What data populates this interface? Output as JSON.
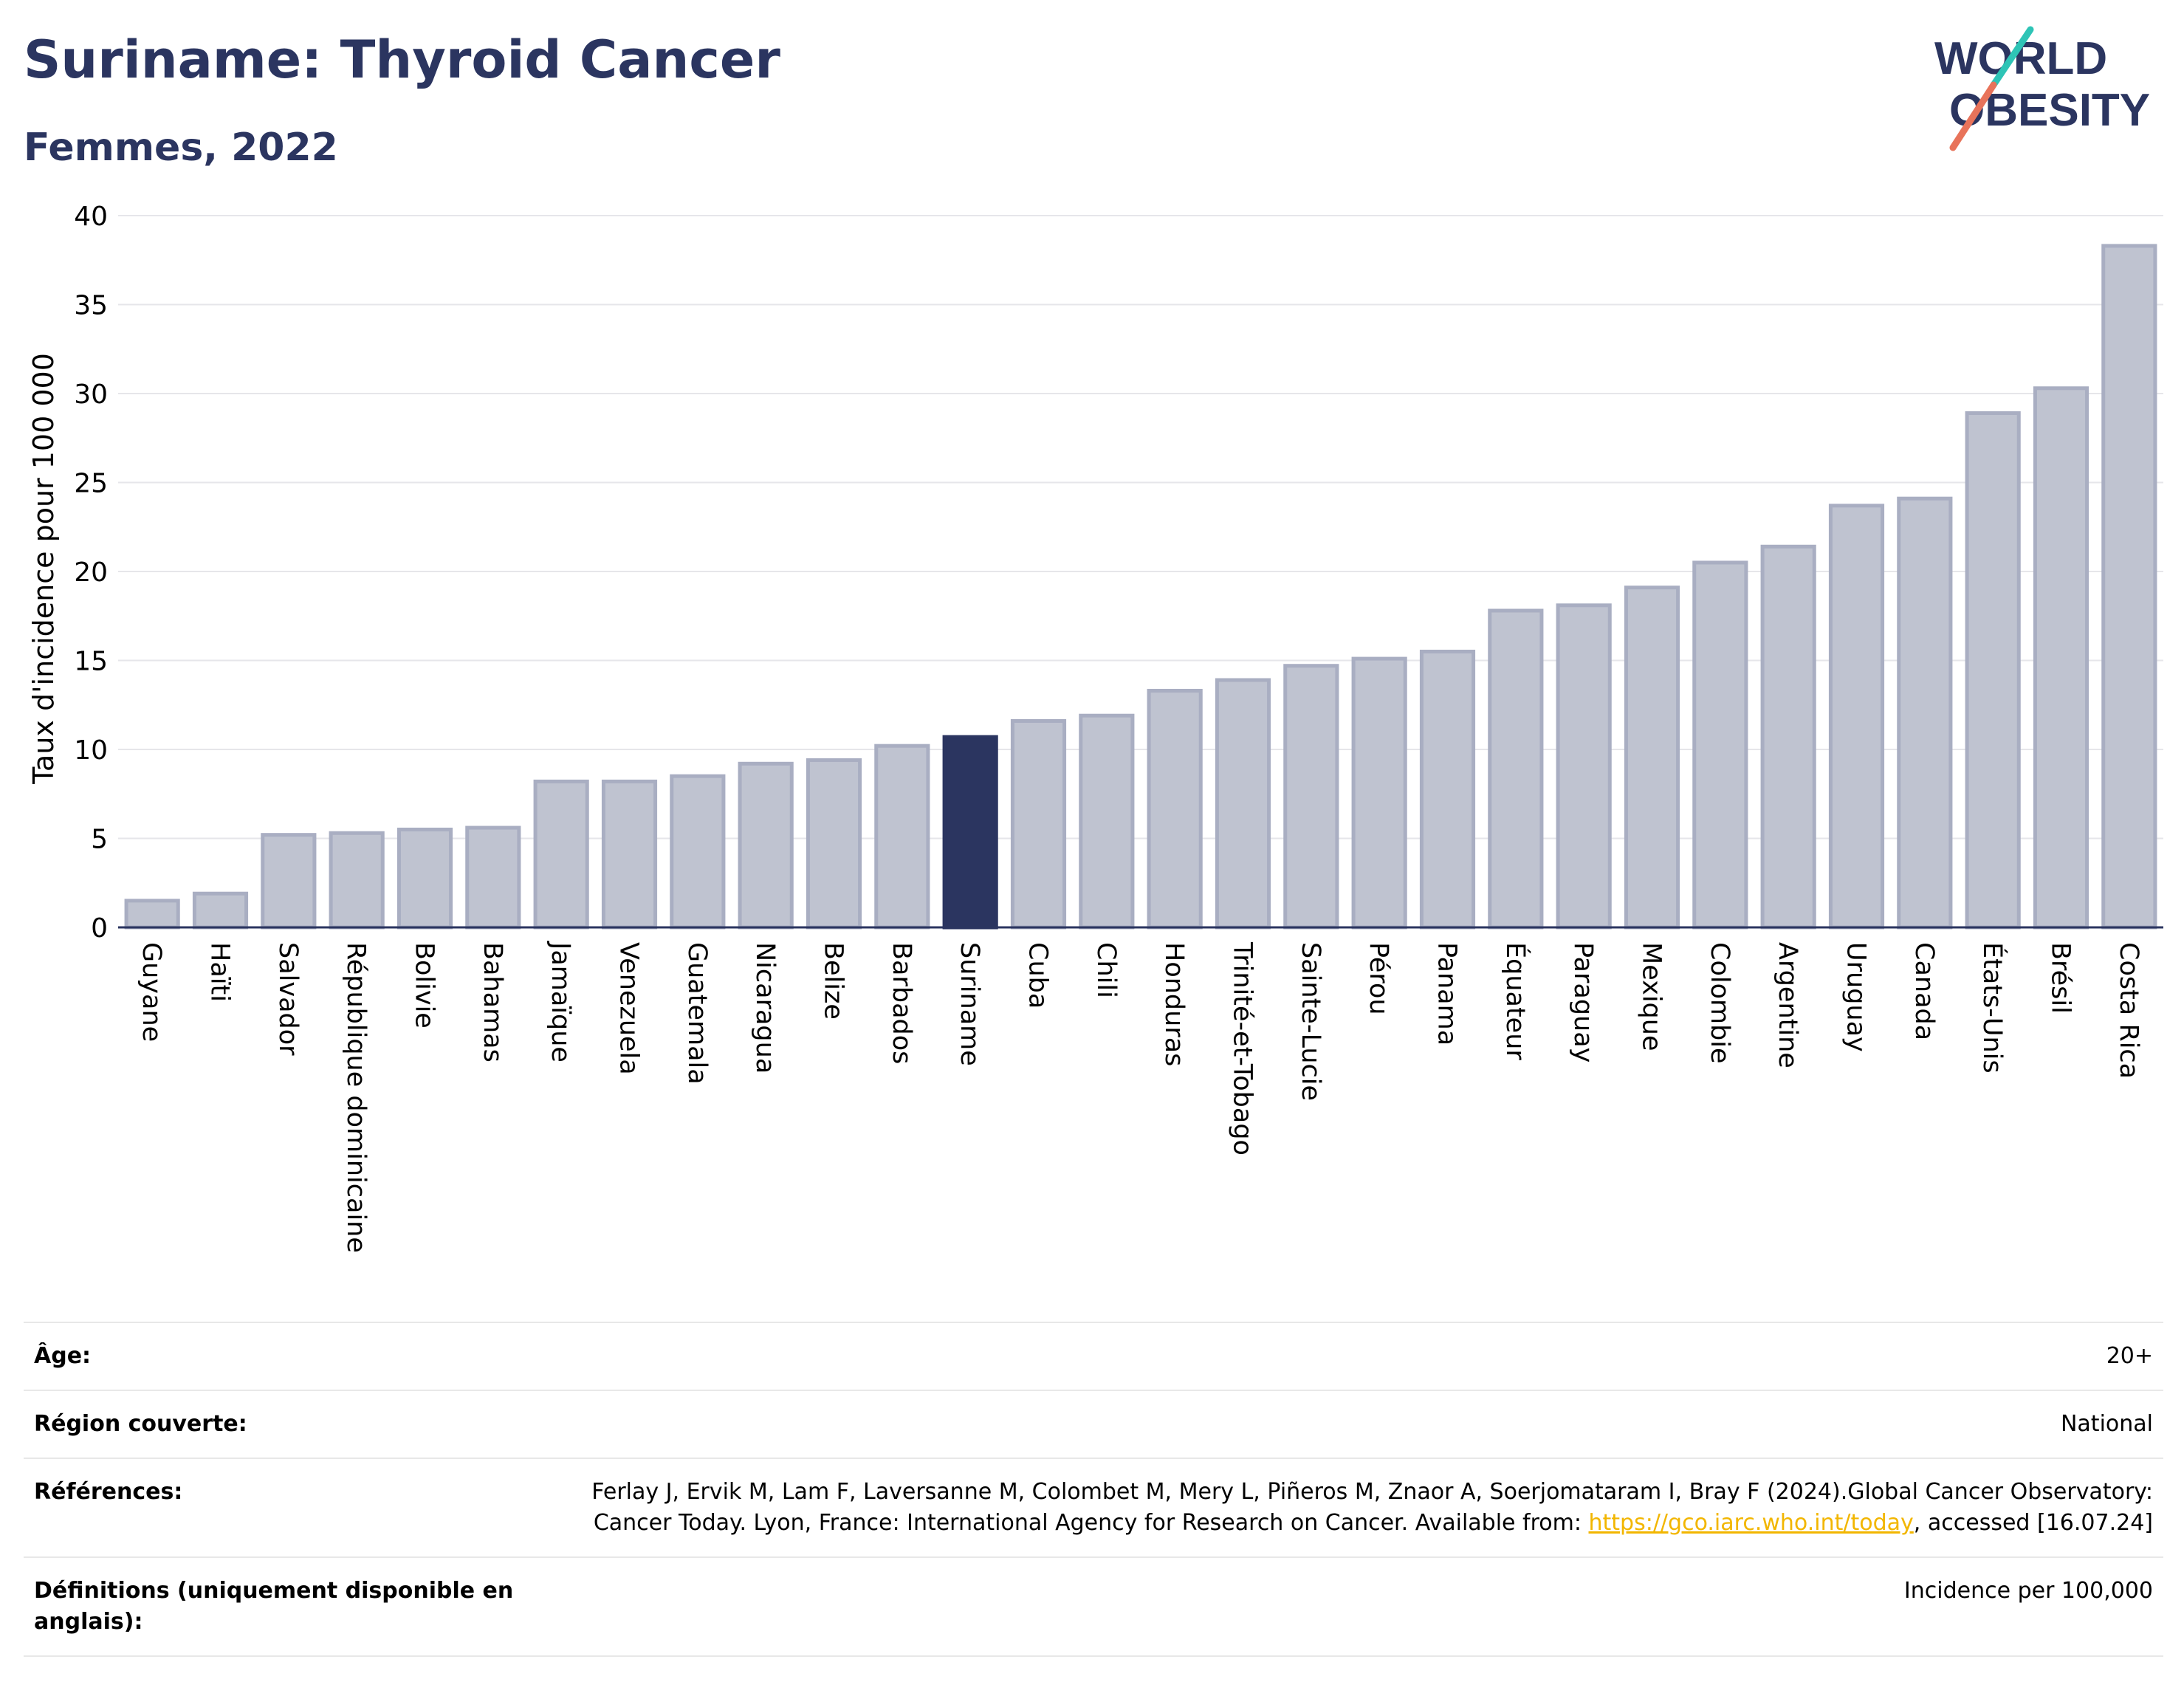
{
  "header": {
    "title": "Suriname: Thyroid Cancer",
    "subtitle": "Femmes, 2022"
  },
  "logo": {
    "line1": "WORLD",
    "line2": "OBESITY",
    "colors": {
      "text": "#2b3560",
      "slash_teal": "#2ec4b6",
      "slash_coral": "#e8735a"
    }
  },
  "chart_data": {
    "type": "bar",
    "ylabel": "Taux d'incidence pour 100 000",
    "ylim": [
      0,
      40
    ],
    "yticks": [
      0,
      5,
      10,
      15,
      20,
      25,
      30,
      35,
      40
    ],
    "grid": true,
    "highlight": "Suriname",
    "colors": {
      "bar": "#bfc3d0",
      "bar_edge": "#a9aec2",
      "highlight": "#2b3560",
      "grid": "#e6e6ea",
      "axis": "#2b3560"
    },
    "categories": [
      "Guyane",
      "Haïti",
      "Salvador",
      "République dominicaine",
      "Bolivie",
      "Bahamas",
      "Jamaïque",
      "Venezuela",
      "Guatemala",
      "Nicaragua",
      "Belize",
      "Barbados",
      "Suriname",
      "Cuba",
      "Chili",
      "Honduras",
      "Trinité-et-Tobago",
      "Sainte-Lucie",
      "Pérou",
      "Panama",
      "Équateur",
      "Paraguay",
      "Mexique",
      "Colombie",
      "Argentine",
      "Uruguay",
      "Canada",
      "États-Unis",
      "Brésil",
      "Costa Rica"
    ],
    "values": [
      1.5,
      1.9,
      5.2,
      5.3,
      5.5,
      5.6,
      8.2,
      8.2,
      8.5,
      9.2,
      9.4,
      10.2,
      10.7,
      11.6,
      11.9,
      13.3,
      13.9,
      14.7,
      15.1,
      15.5,
      17.8,
      18.1,
      19.1,
      20.5,
      21.4,
      23.7,
      24.1,
      28.9,
      30.3,
      38.3
    ]
  },
  "info": {
    "age_label": "Âge:",
    "age_value": "20+",
    "region_label": "Région couverte:",
    "region_value": "National",
    "references_label": "Références:",
    "references_text": "Ferlay J, Ervik M, Lam F, Laversanne M, Colombet M, Mery L, Piñeros M, Znaor A, Soerjomataram I, Bray F (2024).Global Cancer Observatory: Cancer Today. Lyon, France: International Agency for Research on Cancer. Available from: ",
    "references_link": "https://gco.iarc.who.int/today",
    "references_tail": ", accessed [16.07.24]",
    "definitions_label": "Définitions (uniquement disponible en anglais):",
    "definitions_value": "Incidence per 100,000"
  }
}
